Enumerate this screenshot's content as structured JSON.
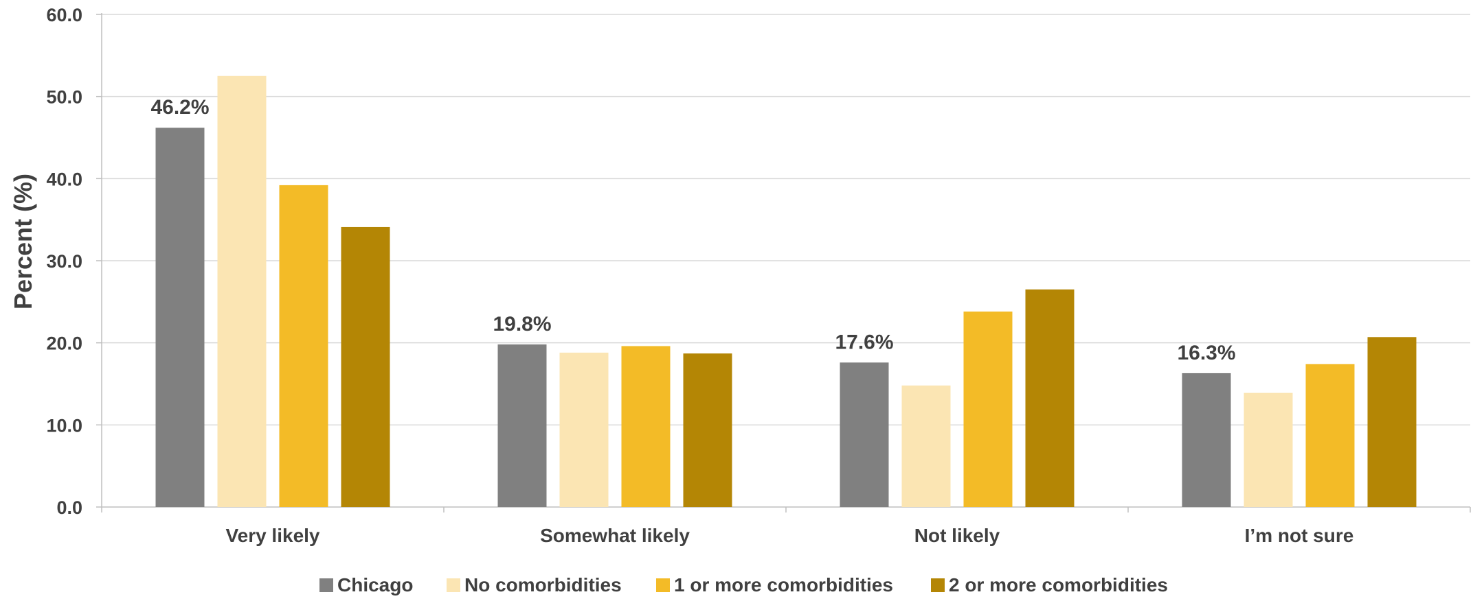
{
  "chart_data": {
    "type": "bar",
    "title": "",
    "xlabel": "",
    "ylabel": "Percent (%)",
    "ylim": [
      0,
      60
    ],
    "yticks": [
      "0.0",
      "10.0",
      "20.0",
      "30.0",
      "40.0",
      "50.0",
      "60.0"
    ],
    "grid": true,
    "legend_position": "bottom",
    "categories": [
      "Very likely",
      "Somewhat likely",
      "Not likely",
      "I’m not sure"
    ],
    "series": [
      {
        "name": "Chicago",
        "color": "#808080",
        "values": [
          46.2,
          19.8,
          17.6,
          16.3
        ]
      },
      {
        "name": "No comorbidities",
        "color": "#fbe5b3",
        "values": [
          52.5,
          18.8,
          14.8,
          13.9
        ]
      },
      {
        "name": "1 or more comorbidities",
        "color": "#f3bb27",
        "values": [
          39.2,
          19.6,
          23.8,
          17.4
        ]
      },
      {
        "name": "2 or more comorbidities",
        "color": "#b48605",
        "values": [
          34.1,
          18.7,
          26.5,
          20.7
        ]
      }
    ],
    "data_labels": {
      "series": "Chicago",
      "values": [
        "46.2%",
        "19.8%",
        "17.6%",
        "16.3%"
      ]
    }
  }
}
